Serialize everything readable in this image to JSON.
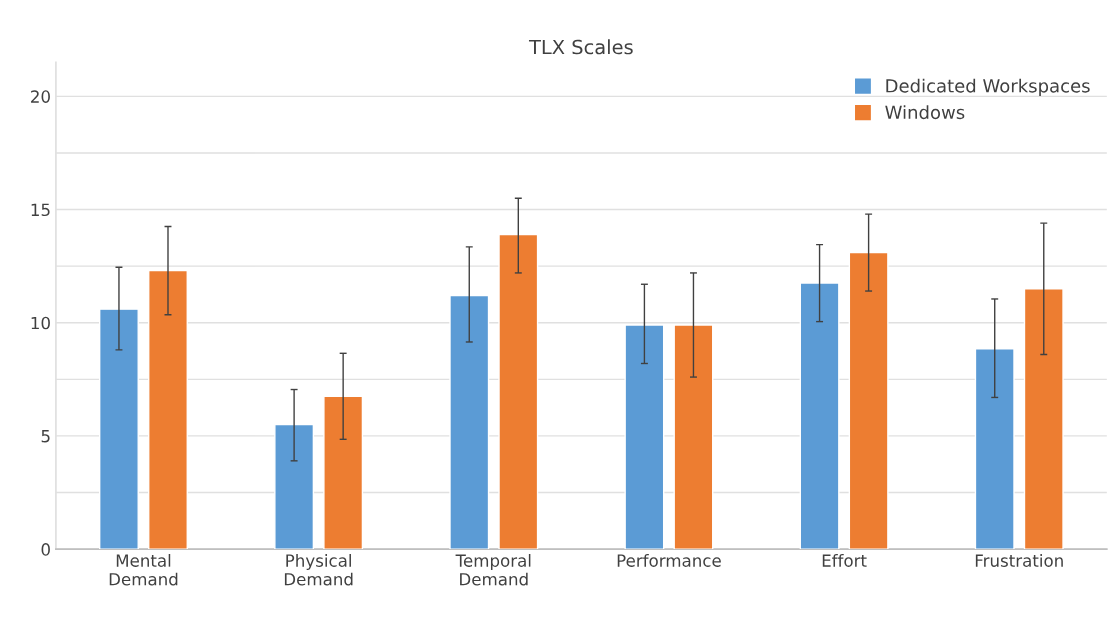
{
  "chart_data": {
    "type": "bar",
    "title": "TLX Scales",
    "categories": [
      "Mental\nDemand",
      "Physical\nDemand",
      "Temporal\nDemand",
      "Performance",
      "Effort",
      "Frustration"
    ],
    "series": [
      {
        "name": "Dedicated Workspaces",
        "color": "#5b9bd5",
        "values": [
          10.6,
          5.5,
          11.2,
          9.9,
          11.75,
          8.85
        ],
        "errors": [
          [
            8.8,
            12.45
          ],
          [
            3.9,
            7.05
          ],
          [
            9.15,
            13.35
          ],
          [
            8.2,
            11.7
          ],
          [
            10.05,
            13.45
          ],
          [
            6.7,
            11.05
          ]
        ]
      },
      {
        "name": "Windows",
        "color": "#ed7d31",
        "values": [
          12.3,
          6.75,
          13.9,
          9.9,
          13.1,
          11.5
        ],
        "errors": [
          [
            10.35,
            14.25
          ],
          [
            4.85,
            8.65
          ],
          [
            12.2,
            15.5
          ],
          [
            7.6,
            12.2
          ],
          [
            11.4,
            14.8
          ],
          [
            8.6,
            14.4
          ]
        ]
      }
    ],
    "ylim": [
      0,
      21.5
    ],
    "yticks": [
      0,
      {
        "value": 2.5,
        "label": null
      },
      5,
      {
        "value": 7.5,
        "label": null
      },
      10,
      {
        "value": 12.5,
        "label": null
      },
      15,
      {
        "value": 17.5,
        "label": null
      },
      20
    ],
    "grid": "y",
    "legend": "top right"
  }
}
